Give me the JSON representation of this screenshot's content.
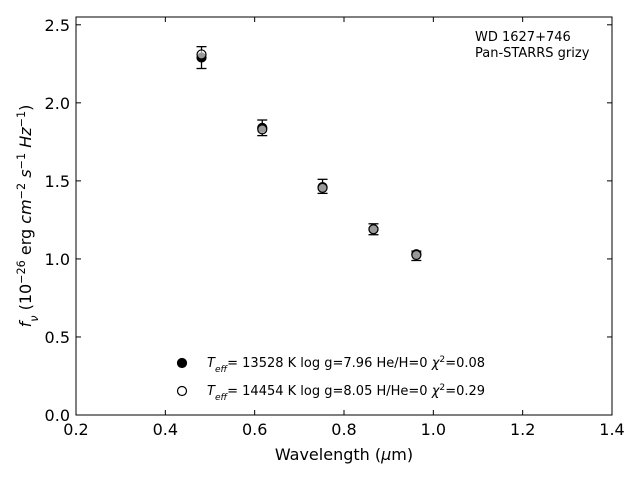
{
  "chart_data": {
    "type": "scatter",
    "xlabel_parts": [
      "Wavelength (",
      "μ",
      "m)"
    ],
    "ylabel_parts": [
      {
        "t": "f",
        "italic": true
      },
      {
        "t": "ν",
        "italic": true,
        "sub": true
      },
      {
        "t": " (10"
      },
      {
        "t": "−26",
        "sup": true
      },
      {
        "t": " erg "
      },
      {
        "t": "cm",
        "italic": true
      },
      {
        "t": "−2",
        "sup": true
      },
      {
        "t": " "
      },
      {
        "t": "s",
        "italic": true
      },
      {
        "t": "−1",
        "sup": true
      },
      {
        "t": " "
      },
      {
        "t": "Hz",
        "italic": true
      },
      {
        "t": "−1",
        "sup": true
      },
      {
        "t": ")"
      }
    ],
    "xlim": [
      0.2,
      1.4
    ],
    "ylim": [
      0.0,
      2.55
    ],
    "xticks": [
      "0.2",
      "0.4",
      "0.6",
      "0.8",
      "1.0",
      "1.2",
      "1.4"
    ],
    "yticks": [
      "0.0",
      "0.5",
      "1.0",
      "1.5",
      "2.0",
      "2.5"
    ],
    "grid": false,
    "annotation_lines": [
      "WD 1627+746",
      "Pan-STARRS grizy"
    ],
    "observed": {
      "x": [
        0.481,
        0.617,
        0.752,
        0.866,
        0.962
      ],
      "y": [
        2.29,
        1.84,
        1.465,
        1.19,
        1.02
      ],
      "err": [
        0.07,
        0.05,
        0.045,
        0.035,
        0.03
      ]
    },
    "series": [
      {
        "marker": "filled-circle",
        "x": [
          0.481,
          0.617,
          0.752,
          0.866,
          0.962
        ],
        "y": [
          2.29,
          1.84,
          1.46,
          1.19,
          1.03
        ]
      },
      {
        "marker": "open-circle",
        "x": [
          0.481,
          0.617,
          0.752,
          0.866,
          0.962
        ],
        "y": [
          2.31,
          1.83,
          1.455,
          1.19,
          1.025
        ]
      }
    ],
    "legend": [
      {
        "marker": "filled-circle",
        "teff_label": "T",
        "teff_sub": "eff",
        "teff_value": "= 13528 K",
        "logg": "log g=7.96",
        "comp": "He/H=0",
        "chi_label": "χ",
        "chi_sup": "2",
        "chi_value": "=0.08"
      },
      {
        "marker": "open-circle",
        "teff_label": "T",
        "teff_sub": "eff",
        "teff_value": "= 14454 K",
        "logg": "log g=8.05",
        "comp": "H/He=0",
        "chi_label": "χ",
        "chi_sup": "2",
        "chi_value": "=0.29"
      }
    ],
    "legend_position": "lower-center"
  }
}
